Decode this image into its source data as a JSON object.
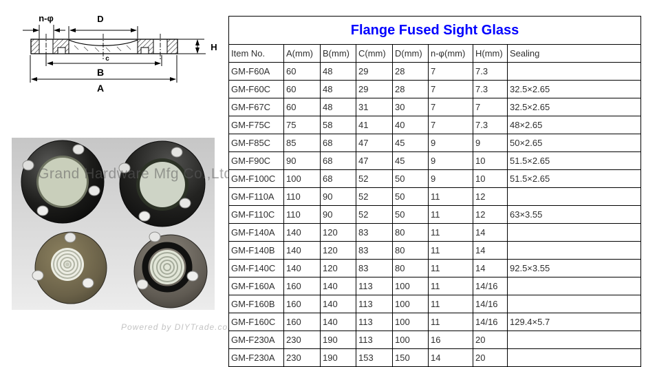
{
  "diagram": {
    "labels": {
      "n_phi": "n-φ",
      "d": "D",
      "h": "H",
      "c": "c",
      "b": "B",
      "a": "A"
    }
  },
  "photo": {
    "watermark": "Grand Hardware Mfg Co.,Ltd",
    "credit": "Powered by DIYTrade.com"
  },
  "table": {
    "title": "Flange Fused Sight Glass",
    "title_color": "#0000ff",
    "headers": [
      "Item No.",
      "A(mm)",
      "B(mm)",
      "C(mm)",
      "D(mm)",
      "n-φ(mm)",
      "H(mm)",
      "Sealing"
    ],
    "rows": [
      [
        "GM-F60A",
        "60",
        "48",
        "29",
        "28",
        "7",
        "7.3",
        ""
      ],
      [
        "GM-F60C",
        "60",
        "48",
        "29",
        "28",
        "7",
        "7.3",
        "32.5×2.65"
      ],
      [
        "GM-F67C",
        "60",
        "48",
        "31",
        "30",
        "7",
        "7",
        "32.5×2.65"
      ],
      [
        "GM-F75C",
        "75",
        "58",
        "41",
        "40",
        "7",
        "7.3",
        "48×2.65"
      ],
      [
        "GM-F85C",
        "85",
        "68",
        "47",
        "45",
        "9",
        "9",
        "50×2.65"
      ],
      [
        "GM-F90C",
        "90",
        "68",
        "47",
        "45",
        "9",
        "10",
        "51.5×2.65"
      ],
      [
        "GM-F100C",
        "100",
        "68",
        "52",
        "50",
        "9",
        "10",
        "51.5×2.65"
      ],
      [
        "GM-F110A",
        "110",
        "90",
        "52",
        "50",
        "11",
        "12",
        ""
      ],
      [
        "GM-F110C",
        "110",
        "90",
        "52",
        "50",
        "11",
        "12",
        "63×3.55"
      ],
      [
        "GM-F140A",
        "140",
        "120",
        "83",
        "80",
        "11",
        "14",
        ""
      ],
      [
        "GM-F140B",
        "140",
        "120",
        "83",
        "80",
        "11",
        "14",
        ""
      ],
      [
        "GM-F140C",
        "140",
        "120",
        "83",
        "80",
        "11",
        "14",
        "92.5×3.55"
      ],
      [
        "GM-F160A",
        "160",
        "140",
        "113",
        "100",
        "11",
        "14/16",
        ""
      ],
      [
        "GM-F160B",
        "160",
        "140",
        "113",
        "100",
        "11",
        "14/16",
        ""
      ],
      [
        "GM-F160C",
        "160",
        "140",
        "113",
        "100",
        "11",
        "14/16",
        "129.4×5.7"
      ],
      [
        "GM-F230A",
        "230",
        "190",
        "113",
        "100",
        "16",
        "20",
        ""
      ],
      [
        "GM-F230A",
        "230",
        "190",
        "153",
        "150",
        "14",
        "20",
        ""
      ]
    ]
  }
}
